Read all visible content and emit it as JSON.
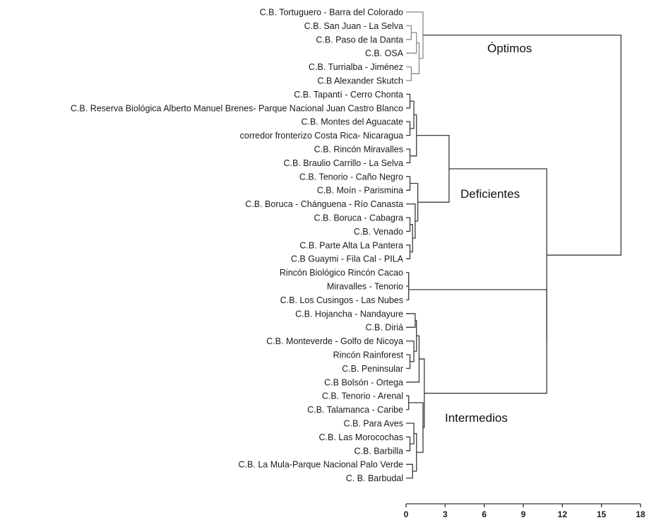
{
  "chart_data": {
    "type": "dendrogram",
    "orientation": "horizontal",
    "title": "",
    "xlabel": "",
    "ylabel": "",
    "xlim": [
      0,
      18
    ],
    "x_ticks": [
      "0",
      "3",
      "6",
      "9",
      "12",
      "15",
      "18"
    ],
    "x_tick_values": [
      0,
      3,
      6,
      9,
      12,
      15,
      18
    ],
    "grid": false,
    "leaves": [
      "C.B. Tortuguero - Barra del Colorado",
      "C.B. San Juan - La Selva",
      "C.B. Paso de la Danta",
      "C.B. OSA",
      "C.B. Turrialba - Jiménez",
      "C.B Alexander Skutch",
      "C.B. Tapantí - Cerro Chonta",
      "C.B. Reserva Biológica Alberto Manuel Brenes- Parque Nacional Juan Castro Blanco",
      "C.B. Montes del Aguacate",
      "corredor fronterizo Costa Rica- Nicaragua",
      "C.B. Rincón Miravalles",
      "C.B. Braulio Carrillo - La Selva",
      "C.B. Tenorio - Caño Negro",
      "C.B. Moín - Parismina",
      "C.B. Boruca - Chánguena - Río Canasta",
      "C.B. Boruca - Cabagra",
      "C.B. Venado",
      "C.B. Parte Alta La Pantera",
      "C.B Guaymi - Fila Cal - PILA",
      "Rincón Biológico Rincón Cacao",
      "Miravalles - Tenorio",
      "C.B. Los Cusingos - Las Nubes",
      "C.B. Hojancha - Nandayure",
      "C.B. Diriá",
      "C.B. Monteverde - Golfo de Nicoya",
      "Rincón Rainforest",
      "C.B. Peninsular",
      "C.B Bolsón - Ortega",
      "C.B. Tenorio - Arenal",
      "C.B. Talamanca - Caribe",
      "C.B. Para Aves",
      "C.B. Las Morocochas",
      "C.B. Barbilla",
      "C.B. La Mula-Parque Nacional Palo Verde",
      "C. B. Barbudal"
    ],
    "merges": [
      {
        "a": 1,
        "b": 2,
        "height": 0.4
      },
      {
        "a": 4,
        "b": 5,
        "height": 0.4
      },
      {
        "a": -1,
        "b": 3,
        "height": 0.8
      },
      {
        "a": -3,
        "b": -2,
        "height": 1.0
      },
      {
        "a": 0,
        "b": -4,
        "height": 1.3
      },
      {
        "a": 6,
        "b": 7,
        "height": 0.3
      },
      {
        "a": 8,
        "b": 9,
        "height": 0.3
      },
      {
        "a": 10,
        "b": 11,
        "height": 0.3
      },
      {
        "a": -6,
        "b": -7,
        "height": 0.6
      },
      {
        "a": -9,
        "b": -8,
        "height": 0.8
      },
      {
        "a": 12,
        "b": 13,
        "height": 0.3
      },
      {
        "a": 15,
        "b": 16,
        "height": 0.3
      },
      {
        "a": 17,
        "b": 18,
        "height": 0.3
      },
      {
        "a": -12,
        "b": -13,
        "height": 0.5
      },
      {
        "a": 14,
        "b": -14,
        "height": 0.7
      },
      {
        "a": -11,
        "b": -15,
        "height": 0.9
      },
      {
        "a": -10,
        "b": -16,
        "height": 3.3
      },
      {
        "a": 19,
        "b": 20,
        "height": 0.2
      },
      {
        "a": -18,
        "b": 21,
        "height": 0.2
      },
      {
        "a": 22,
        "b": 23,
        "height": 0.7
      },
      {
        "a": 25,
        "b": 26,
        "height": 0.3
      },
      {
        "a": 24,
        "b": -21,
        "height": 0.6
      },
      {
        "a": -20,
        "b": -22,
        "height": 0.8
      },
      {
        "a": -23,
        "b": 27,
        "height": 1.0
      },
      {
        "a": 28,
        "b": 29,
        "height": 0.2
      },
      {
        "a": 31,
        "b": 32,
        "height": 0.3
      },
      {
        "a": 30,
        "b": -26,
        "height": 0.6
      },
      {
        "a": 33,
        "b": 34,
        "height": 0.5
      },
      {
        "a": -27,
        "b": -28,
        "height": 0.8
      },
      {
        "a": -25,
        "b": -29,
        "height": 1.3
      },
      {
        "a": -24,
        "b": -30,
        "height": 1.4
      },
      {
        "a": -19,
        "b": -31,
        "height": 10.8
      },
      {
        "a": -17,
        "b": -32,
        "height": 10.8
      },
      {
        "a": -5,
        "b": -33,
        "height": 16.5
      }
    ],
    "clusters": [
      {
        "name": "Óptimos",
        "first_leaf": 0,
        "last_leaf": 5
      },
      {
        "name": "Deficientes",
        "first_leaf": 6,
        "last_leaf": 18
      },
      {
        "name": "Intermedios",
        "first_leaf": 19,
        "last_leaf": 34
      }
    ],
    "colors": {
      "optimos_links": "#8a8a8a",
      "other_links": "#3a3a3a",
      "axis": "#333333",
      "text": "#1a1a1a"
    }
  }
}
